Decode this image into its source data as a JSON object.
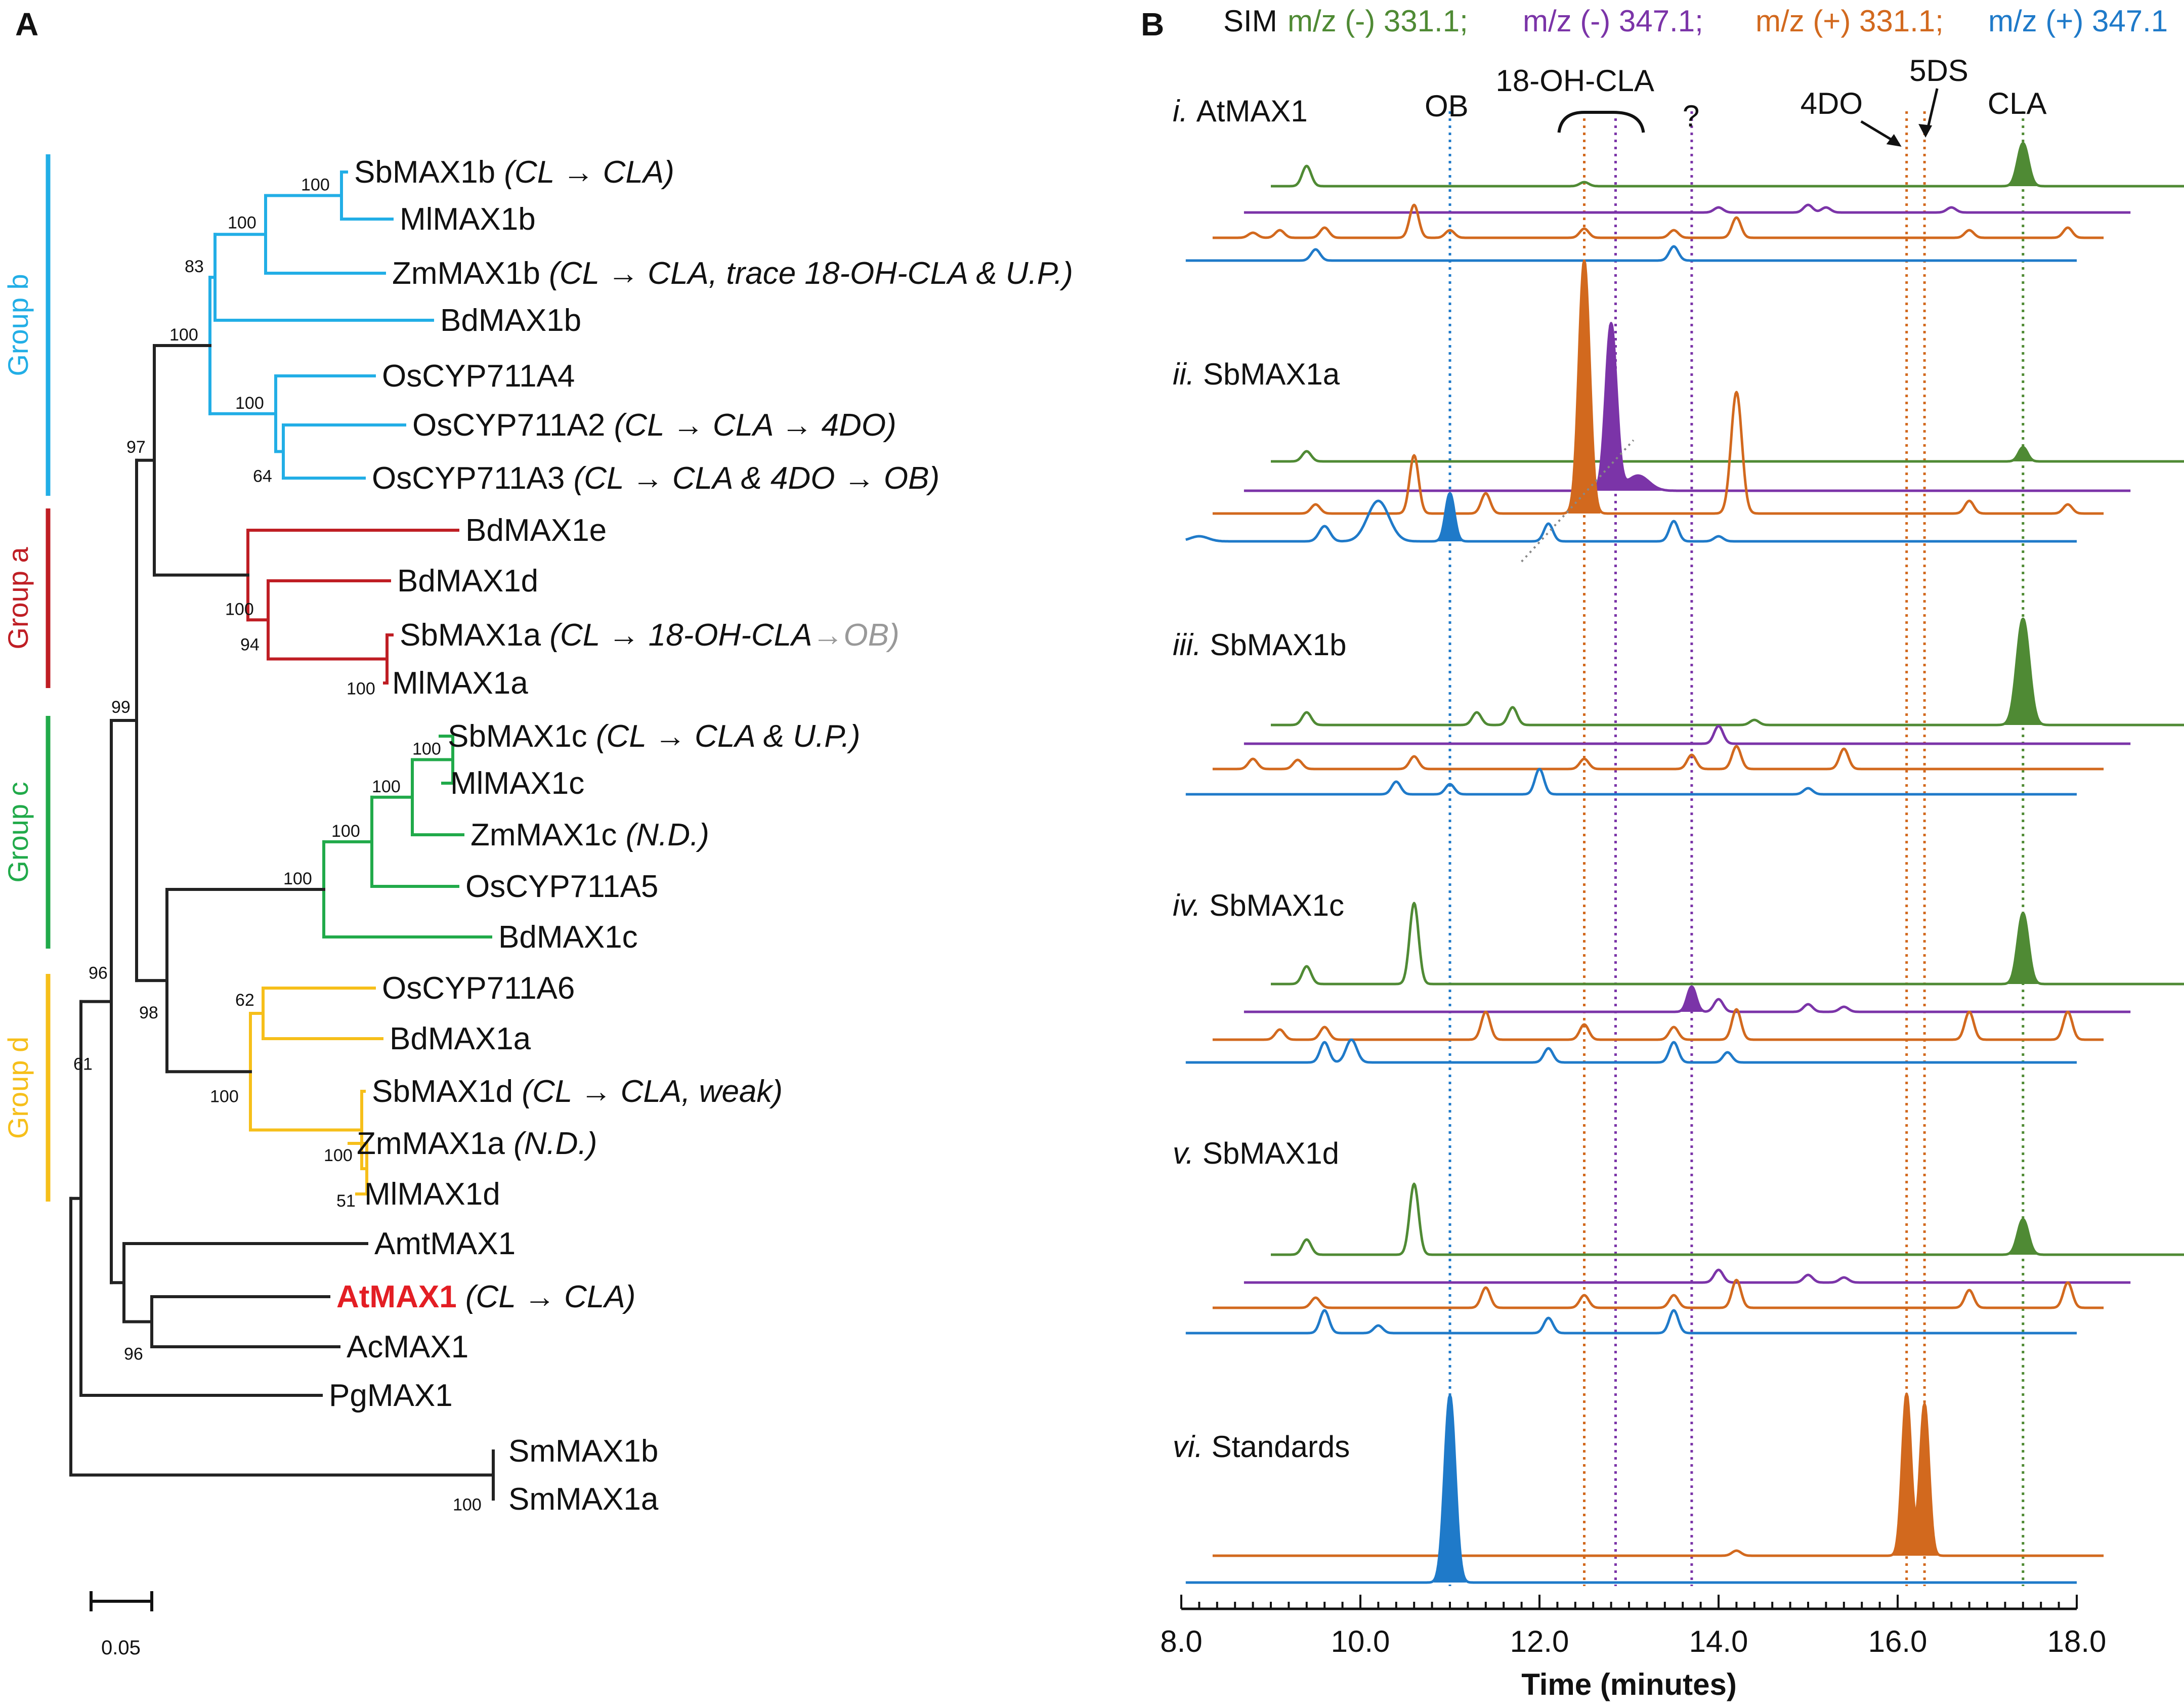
{
  "panelA": {
    "label": "A",
    "groups": [
      {
        "name": "Group b",
        "color": "#22aee6"
      },
      {
        "name": "Group a",
        "color": "#bf1e24"
      },
      {
        "name": "Group c",
        "color": "#21aa4a"
      },
      {
        "name": "Group d",
        "color": "#f6bf1a"
      }
    ],
    "leaves": [
      {
        "name": "SbMAX1b",
        "note": "(CL → CLA)"
      },
      {
        "name": "MlMAX1b",
        "note": ""
      },
      {
        "name": "ZmMAX1b",
        "note": "(CL → CLA, trace 18-OH-CLA & U.P.)"
      },
      {
        "name": "BdMAX1b",
        "note": ""
      },
      {
        "name": "OsCYP711A4",
        "note": ""
      },
      {
        "name": "OsCYP711A2",
        "note": "(CL → CLA → 4DO)"
      },
      {
        "name": "OsCYP711A3",
        "note": "(CL → CLA & 4DO → OB)"
      },
      {
        "name": "BdMAX1e",
        "note": ""
      },
      {
        "name": "BdMAX1d",
        "note": ""
      },
      {
        "name": "SbMAX1a",
        "note": "(CL → 18-OH-CLA",
        "note2": "→OB)"
      },
      {
        "name": "MlMAX1a",
        "note": ""
      },
      {
        "name": "SbMAX1c",
        "note": "(CL → CLA & U.P.)"
      },
      {
        "name": "MlMAX1c",
        "note": ""
      },
      {
        "name": "ZmMAX1c",
        "note": "(N.D.)"
      },
      {
        "name": "OsCYP711A5",
        "note": ""
      },
      {
        "name": "BdMAX1c",
        "note": ""
      },
      {
        "name": "OsCYP711A6",
        "note": ""
      },
      {
        "name": "BdMAX1a",
        "note": ""
      },
      {
        "name": "SbMAX1d",
        "note": "(CL → CLA, weak)"
      },
      {
        "name": "ZmMAX1a",
        "note": "(N.D.)"
      },
      {
        "name": "MlMAX1d",
        "note": ""
      },
      {
        "name": "AmtMAX1",
        "note": ""
      },
      {
        "name": "AtMAX1",
        "note": "(CL → CLA)"
      },
      {
        "name": "AcMAX1",
        "note": ""
      },
      {
        "name": "PgMAX1",
        "note": ""
      },
      {
        "name": "SmMAX1b",
        "note": ""
      },
      {
        "name": "SmMAX1a",
        "note": ""
      }
    ],
    "bootstraps": [
      "100",
      "100",
      "83",
      "100",
      "100",
      "64",
      "97",
      "100",
      "94",
      "100",
      "99",
      "100",
      "100",
      "100",
      "100",
      "62",
      "100",
      "100",
      "51",
      "98",
      "96",
      "61",
      "96",
      "100"
    ],
    "scale_bar": "0.05"
  },
  "chart_data": {
    "type": "line",
    "panel_label": "B",
    "title_prefix": "SIM",
    "legend": [
      {
        "label": "m/z (-)  331.1;",
        "color": "#4f8a34"
      },
      {
        "label": "m/z (-)  347.1;",
        "color": "#7b34a8"
      },
      {
        "label": "m/z (+) 331.1;",
        "color": "#d2691e"
      },
      {
        "label": "m/z (+) 347.1",
        "color": "#1f7ac9"
      }
    ],
    "xlabel": "Time (minutes)",
    "xlim": [
      8.0,
      18.0
    ],
    "xticks": [
      "8.0",
      "10.0",
      "12.0",
      "14.0",
      "16.0",
      "18.0"
    ],
    "reference_lines": [
      {
        "label": "OB",
        "x": 11.0,
        "color": "#1f7ac9"
      },
      {
        "label": "18-OH-CLA",
        "x": 12.5,
        "color": "#d2691e"
      },
      {
        "label": "18-OH-CLA",
        "x": 12.85,
        "color": "#7b34a8"
      },
      {
        "label": "?",
        "x": 13.7,
        "color": "#7b34a8"
      },
      {
        "label": "4DO",
        "x": 16.1,
        "color": "#d2691e"
      },
      {
        "label": "5DS",
        "x": 16.3,
        "color": "#d2691e"
      },
      {
        "label": "CLA",
        "x": 17.4,
        "color": "#4f8a34"
      }
    ],
    "samples": [
      {
        "label_i": "i.",
        "label": "AtMAX1",
        "traces": [
          {
            "ion": "neg331",
            "peaks": [
              [
                9.4,
                40,
                0.05
              ],
              [
                12.5,
                8,
                0.05
              ],
              [
                17.4,
                85,
                0.06,
                1
              ]
            ]
          },
          {
            "ion": "neg347",
            "peaks": [
              [
                14.0,
                10,
                0.05
              ],
              [
                15.0,
                15,
                0.05
              ],
              [
                15.2,
                10,
                0.05
              ],
              [
                16.6,
                10,
                0.05
              ]
            ]
          },
          {
            "ion": "pos331",
            "peaks": [
              [
                8.8,
                10,
                0.05
              ],
              [
                9.1,
                15,
                0.05
              ],
              [
                9.6,
                20,
                0.05
              ],
              [
                10.6,
                65,
                0.05
              ],
              [
                11.0,
                15,
                0.05
              ],
              [
                12.5,
                18,
                0.05
              ],
              [
                13.5,
                15,
                0.05
              ],
              [
                14.2,
                40,
                0.05
              ],
              [
                16.8,
                15,
                0.05
              ],
              [
                17.9,
                20,
                0.05
              ]
            ]
          },
          {
            "ion": "pos347",
            "peaks": [
              [
                9.5,
                22,
                0.05
              ],
              [
                13.5,
                28,
                0.05
              ]
            ]
          }
        ]
      },
      {
        "label_i": "ii.",
        "label": "SbMAX1a",
        "traces": [
          {
            "ion": "neg331",
            "peaks": [
              [
                9.4,
                20,
                0.05
              ],
              [
                17.4,
                28,
                0.05,
                1
              ]
            ]
          },
          {
            "ion": "neg347",
            "peaks": [
              [
                12.8,
                330,
                0.06,
                1
              ],
              [
                13.1,
                30,
                0.12,
                1
              ]
            ]
          },
          {
            "ion": "pos331",
            "peaks": [
              [
                9.5,
                18,
                0.05
              ],
              [
                10.6,
                115,
                0.05
              ],
              [
                11.4,
                40,
                0.05
              ],
              [
                12.5,
                500,
                0.06,
                1
              ],
              [
                14.2,
                240,
                0.06
              ],
              [
                16.8,
                25,
                0.05
              ],
              [
                17.9,
                18,
                0.05
              ]
            ]
          },
          {
            "ion": "pos347",
            "peaks": [
              [
                8.2,
                10,
                0.1
              ],
              [
                9.6,
                30,
                0.06
              ],
              [
                10.2,
                80,
                0.12
              ],
              [
                11.0,
                95,
                0.05,
                1
              ],
              [
                12.1,
                35,
                0.05
              ],
              [
                13.5,
                40,
                0.05
              ],
              [
                14.0,
                10,
                0.05
              ]
            ]
          }
        ]
      },
      {
        "label_i": "iii.",
        "label": "SbMAX1b",
        "traces": [
          {
            "ion": "neg331",
            "peaks": [
              [
                9.4,
                25,
                0.05
              ],
              [
                11.3,
                25,
                0.05
              ],
              [
                11.7,
                35,
                0.05
              ],
              [
                14.4,
                10,
                0.05
              ],
              [
                17.4,
                210,
                0.07,
                1
              ]
            ]
          },
          {
            "ion": "neg347",
            "peaks": [
              [
                14.0,
                35,
                0.05
              ]
            ]
          },
          {
            "ion": "pos331",
            "peaks": [
              [
                8.8,
                20,
                0.05
              ],
              [
                9.3,
                18,
                0.05
              ],
              [
                10.6,
                25,
                0.05
              ],
              [
                12.5,
                20,
                0.05
              ],
              [
                13.7,
                28,
                0.05
              ],
              [
                14.2,
                45,
                0.05
              ],
              [
                15.4,
                40,
                0.05
              ]
            ]
          },
          {
            "ion": "pos347",
            "peaks": [
              [
                10.4,
                25,
                0.05
              ],
              [
                11.0,
                20,
                0.05
              ],
              [
                12.0,
                50,
                0.05
              ],
              [
                15.0,
                12,
                0.05
              ]
            ]
          }
        ]
      },
      {
        "label_i": "iv.",
        "label": "SbMAX1c",
        "traces": [
          {
            "ion": "neg331",
            "peaks": [
              [
                9.4,
                35,
                0.05
              ],
              [
                10.6,
                160,
                0.05
              ],
              [
                17.4,
                140,
                0.06,
                1
              ]
            ]
          },
          {
            "ion": "neg347",
            "peaks": [
              [
                13.7,
                50,
                0.05,
                1
              ],
              [
                14.0,
                25,
                0.05
              ],
              [
                15.0,
                15,
                0.05
              ],
              [
                15.4,
                10,
                0.05
              ]
            ]
          },
          {
            "ion": "pos331",
            "peaks": [
              [
                9.1,
                20,
                0.05
              ],
              [
                9.6,
                25,
                0.05
              ],
              [
                11.4,
                55,
                0.05
              ],
              [
                12.5,
                30,
                0.05
              ],
              [
                13.5,
                25,
                0.05
              ],
              [
                14.2,
                60,
                0.05
              ],
              [
                16.8,
                55,
                0.05
              ],
              [
                17.9,
                55,
                0.05
              ]
            ]
          },
          {
            "ion": "pos347",
            "peaks": [
              [
                9.6,
                40,
                0.05
              ],
              [
                9.9,
                45,
                0.06
              ],
              [
                12.1,
                28,
                0.05
              ],
              [
                13.5,
                40,
                0.05
              ],
              [
                14.1,
                20,
                0.05
              ]
            ]
          }
        ]
      },
      {
        "label_i": "v.",
        "label": "SbMAX1d",
        "traces": [
          {
            "ion": "neg331",
            "peaks": [
              [
                9.4,
                30,
                0.05
              ],
              [
                10.6,
                140,
                0.05
              ],
              [
                17.4,
                70,
                0.06,
                1
              ]
            ]
          },
          {
            "ion": "neg347",
            "peaks": [
              [
                14.0,
                25,
                0.05
              ],
              [
                15.0,
                15,
                0.05
              ],
              [
                15.4,
                10,
                0.05
              ]
            ]
          },
          {
            "ion": "pos331",
            "peaks": [
              [
                9.5,
                20,
                0.05
              ],
              [
                11.4,
                40,
                0.05
              ],
              [
                12.5,
                25,
                0.05
              ],
              [
                13.5,
                25,
                0.05
              ],
              [
                14.2,
                55,
                0.05
              ],
              [
                16.8,
                35,
                0.05
              ],
              [
                17.9,
                50,
                0.05
              ]
            ]
          },
          {
            "ion": "pos347",
            "peaks": [
              [
                9.6,
                45,
                0.05
              ],
              [
                10.2,
                15,
                0.05
              ],
              [
                12.1,
                30,
                0.05
              ],
              [
                13.5,
                45,
                0.05
              ]
            ]
          }
        ]
      },
      {
        "label_i": "vi.",
        "label": "Standards",
        "traces": [
          {
            "ion": "pos331",
            "peaks": [
              [
                14.2,
                10,
                0.05
              ],
              [
                16.1,
                320,
                0.05,
                1
              ],
              [
                16.3,
                300,
                0.05,
                1
              ]
            ]
          },
          {
            "ion": "pos347",
            "peaks": [
              [
                11.0,
                370,
                0.06,
                1
              ]
            ]
          }
        ]
      }
    ]
  }
}
